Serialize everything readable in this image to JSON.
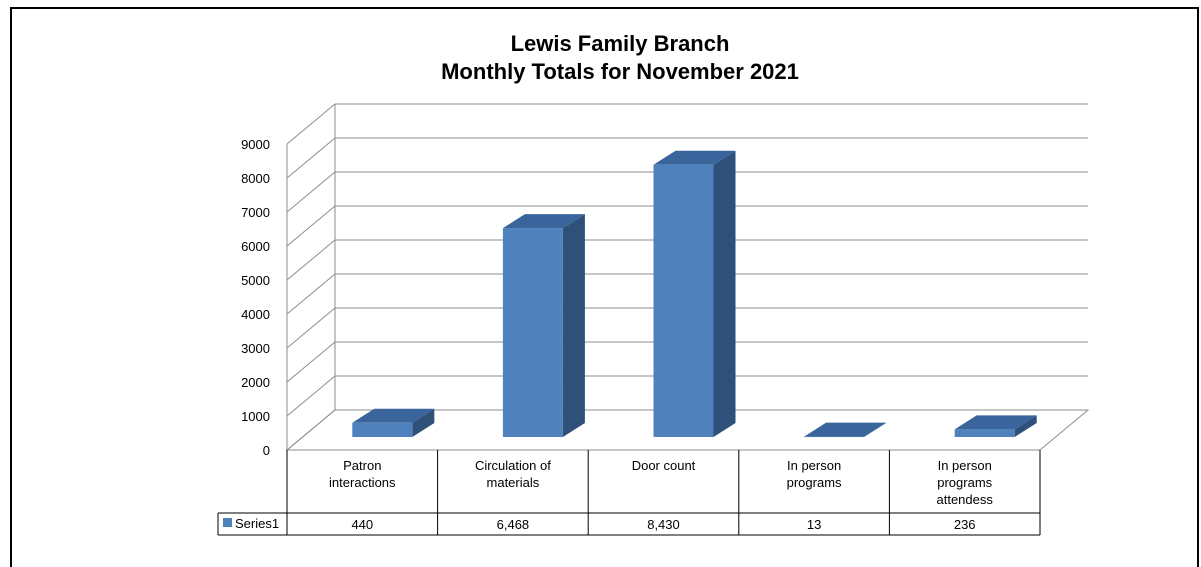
{
  "chart_data": {
    "type": "bar",
    "title_lines": [
      "Lewis Family Branch",
      "Monthly Totals for November 2021"
    ],
    "categories": [
      [
        "Patron",
        "interactions"
      ],
      [
        "Circulation of",
        "materials"
      ],
      [
        "Door count"
      ],
      [
        "In person",
        "programs"
      ],
      [
        "In person",
        "programs",
        "attendess"
      ]
    ],
    "series": [
      {
        "name": "Series1",
        "values": [
          440,
          6468,
          8430,
          13,
          236
        ],
        "labels": [
          "440",
          "6,468",
          "8,430",
          "13",
          "236"
        ]
      }
    ],
    "ylim": [
      0,
      9000
    ],
    "yticks": [
      0,
      1000,
      2000,
      3000,
      4000,
      5000,
      6000,
      7000,
      8000,
      9000
    ],
    "grid": true,
    "three_d": true,
    "data_table": true,
    "colors": {
      "front": "#4f81bd",
      "side": "#2f5079",
      "top": "#3a659c",
      "grid": "#8c8c8c"
    }
  }
}
